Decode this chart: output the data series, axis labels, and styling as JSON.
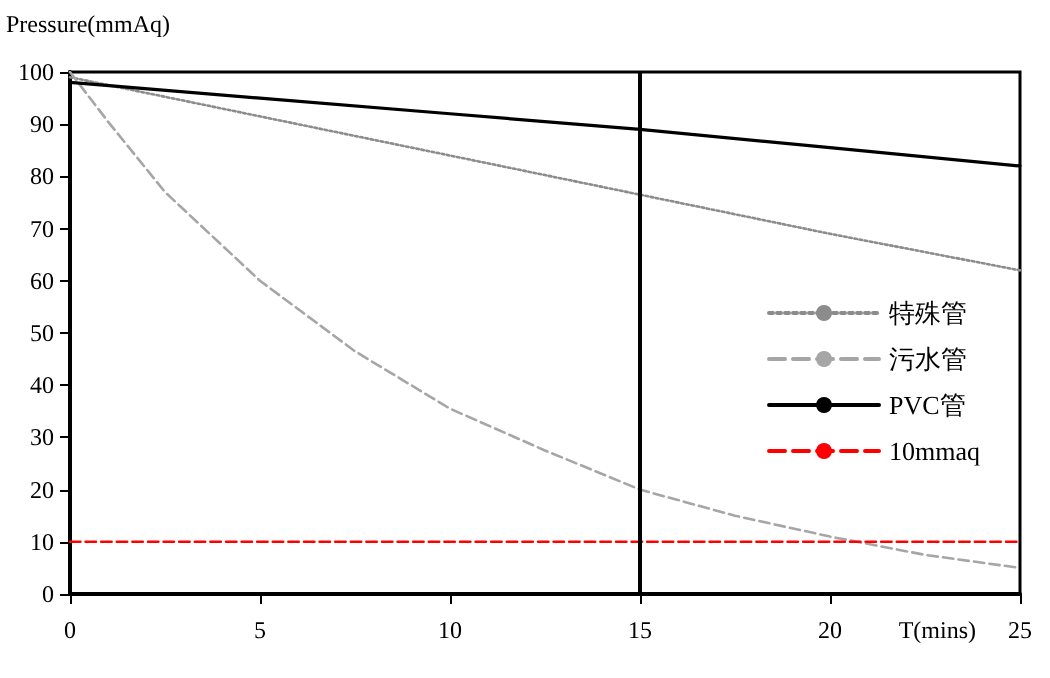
{
  "chart_data": {
    "type": "line",
    "xlabel": "T(mins)",
    "ylabel": "Pressure(mmAq)",
    "series": [
      {
        "name": "特殊管",
        "color": "#8c8c8c",
        "line_style": "dotted",
        "x": [
          0,
          5,
          10,
          15,
          20,
          25
        ],
        "values": [
          99,
          91.5,
          84,
          76.5,
          69,
          62
        ]
      },
      {
        "name": "污水管",
        "color": "#a6a6a6",
        "line_style": "dashed",
        "x": [
          0,
          1,
          2.5,
          5,
          7.5,
          10,
          12.5,
          15,
          17.5,
          20,
          22.5,
          25
        ],
        "values": [
          100,
          90.5,
          77,
          60,
          46.5,
          35.5,
          27.5,
          20,
          15,
          11,
          7.5,
          5
        ]
      },
      {
        "name": "PVC管",
        "color": "#000000",
        "line_style": "solid",
        "x": [
          0,
          5,
          10,
          15,
          20,
          25
        ],
        "values": [
          98,
          95,
          92,
          89,
          85.5,
          82
        ]
      },
      {
        "name": "10mmaq",
        "color": "#ff0000",
        "line_style": "dashed",
        "x": [
          0,
          25
        ],
        "values": [
          10,
          10
        ]
      }
    ],
    "ref_lines": [
      {
        "axis": "x",
        "value": 15,
        "label": null,
        "color": "#000000",
        "line_style": "solid"
      }
    ],
    "xlim": [
      0,
      25
    ],
    "xticks": [
      0,
      5,
      10,
      15,
      20,
      25
    ],
    "ylim": [
      0,
      100
    ],
    "yticks": [
      0,
      10,
      20,
      30,
      40,
      50,
      60,
      70,
      80,
      90,
      100
    ],
    "grid": false,
    "legend": "right",
    "marker": "none"
  }
}
